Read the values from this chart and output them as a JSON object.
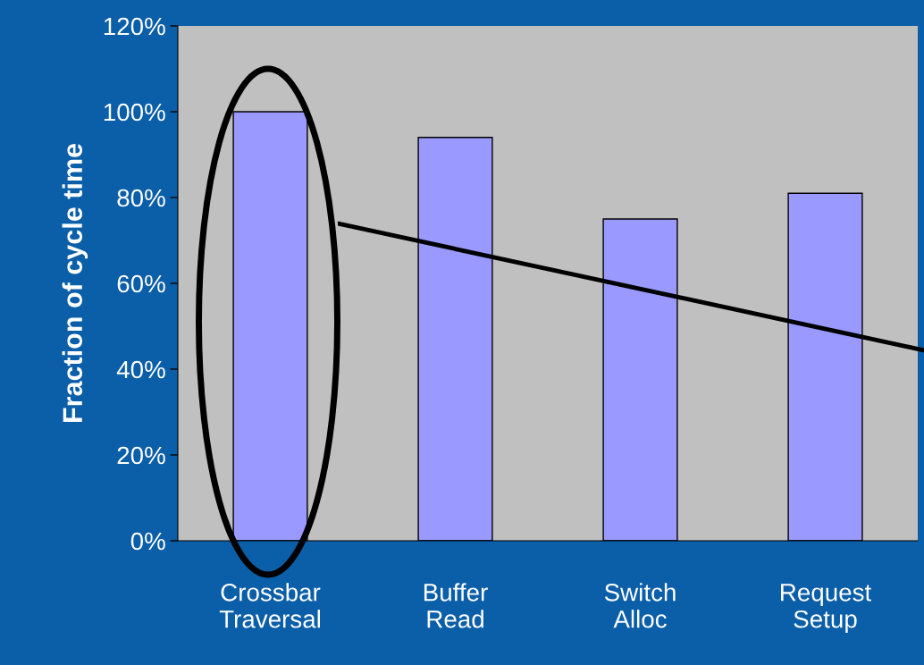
{
  "chart_data": {
    "type": "bar",
    "ylabel": "Fraction of cycle time",
    "categories": [
      "Crossbar\nTraversal",
      "Buffer\nRead",
      "Switch\nAlloc",
      "Request\nSetup"
    ],
    "values": [
      100,
      94,
      75,
      81
    ],
    "color": "#9999ff",
    "ylim": [
      0,
      120
    ],
    "yticks": [
      {
        "value": 0,
        "label": "0%"
      },
      {
        "value": 20,
        "label": "20%"
      },
      {
        "value": 40,
        "label": "40%"
      },
      {
        "value": 60,
        "label": "60%"
      },
      {
        "value": 80,
        "label": "80%"
      },
      {
        "value": 100,
        "label": "100%"
      },
      {
        "value": 120,
        "label": "120%"
      }
    ],
    "grid": false,
    "legend": false
  }
}
